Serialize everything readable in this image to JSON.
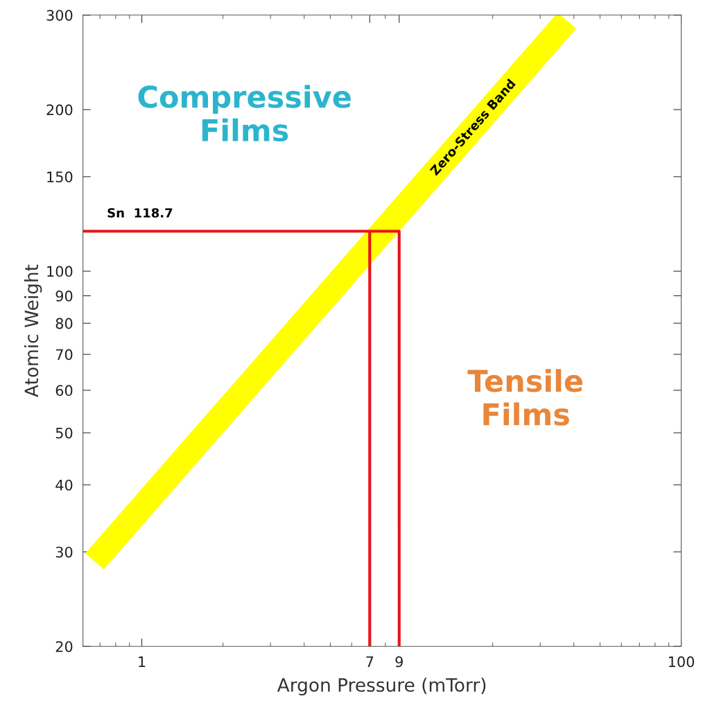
{
  "chart_data": {
    "type": "line",
    "xlabel": "Argon Pressure (mTorr)",
    "ylabel": "Atomic Weight",
    "log": "xy",
    "xlim": [
      0.605,
      100
    ],
    "xticks": [
      1,
      7,
      9,
      100
    ],
    "ylim": [
      20,
      300
    ],
    "yticks": [
      20,
      30,
      40,
      50,
      60,
      70,
      80,
      90,
      100,
      150,
      200,
      300
    ],
    "grid": false,
    "legend": false,
    "marker": "none",
    "line_style": "solid",
    "series": [
      {
        "color": "#ffff00",
        "x": [
          0.668,
          37.7
        ],
        "values": [
          28.8,
          293
        ]
      },
      {
        "color": "#e8141b",
        "x": [
          0.605,
          9,
          9
        ],
        "values": [
          118.7,
          118.7,
          20
        ]
      },
      {
        "color": "#e8141b",
        "x": [
          7,
          7
        ],
        "values": [
          118.7,
          20
        ]
      }
    ],
    "annotations": [
      "Sn  118.7",
      {
        "text": "Zero-Stress Band",
        "x": 17,
        "y": 185
      },
      "Compressive\nFilms",
      "Tensile\nFilms"
    ]
  }
}
